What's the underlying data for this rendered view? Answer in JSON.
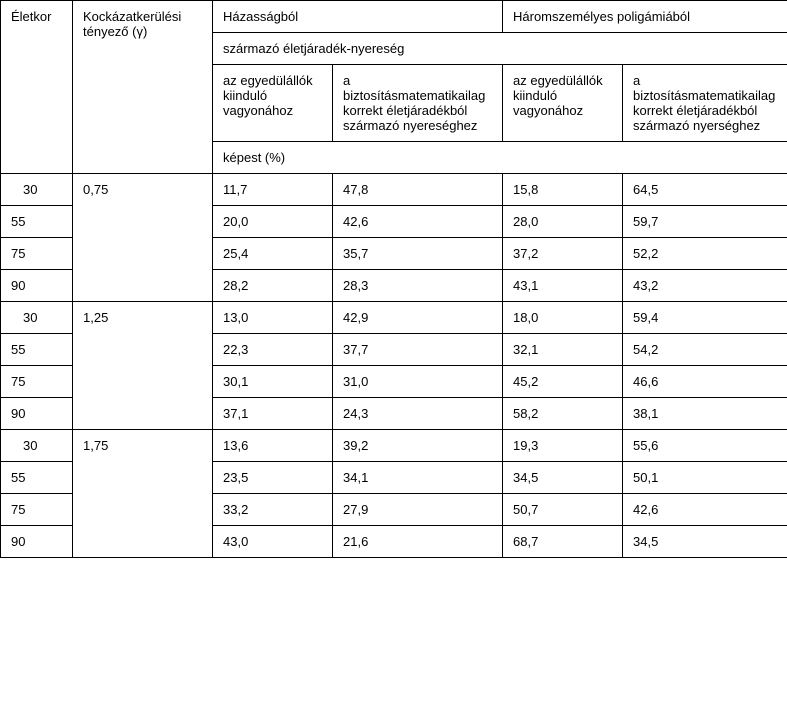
{
  "headers": {
    "col_age": "Életkor",
    "col_risk": "Kockázatkerülési tényező (γ)",
    "marriage": "Házasságból",
    "polygamy": "Háromszemélyes poligámiából",
    "annuity_gain": "származó életjáradék-nyereség",
    "sub_a": "az egyedülállók kiinduló vagyonához",
    "sub_b": "a biztosításmatematikailag korrekt életjáradékból származó nyereséghez",
    "sub_c": "az egyedülállók kiinduló vagyonához",
    "sub_d": "a biztosításmatematikailag korrekt életjáradékból származó nyerséghez",
    "compared": "képest (%)"
  },
  "groups": [
    {
      "risk": "0,75",
      "rows": [
        {
          "age": "30",
          "indent": true,
          "v1": "11,7",
          "v2": "47,8",
          "v3": "15,8",
          "v4": "64,5"
        },
        {
          "age": "55",
          "indent": false,
          "v1": "20,0",
          "v2": "42,6",
          "v3": "28,0",
          "v4": "59,7"
        },
        {
          "age": "75",
          "indent": false,
          "v1": "25,4",
          "v2": "35,7",
          "v3": "37,2",
          "v4": "52,2"
        },
        {
          "age": "90",
          "indent": false,
          "v1": "28,2",
          "v2": "28,3",
          "v3": "43,1",
          "v4": "43,2"
        }
      ]
    },
    {
      "risk": "1,25",
      "rows": [
        {
          "age": "30",
          "indent": true,
          "v1": "13,0",
          "v2": "42,9",
          "v3": "18,0",
          "v4": "59,4"
        },
        {
          "age": "55",
          "indent": false,
          "v1": "22,3",
          "v2": "37,7",
          "v3": "32,1",
          "v4": "54,2"
        },
        {
          "age": "75",
          "indent": false,
          "v1": "30,1",
          "v2": "31,0",
          "v3": "45,2",
          "v4": "46,6"
        },
        {
          "age": "90",
          "indent": false,
          "v1": "37,1",
          "v2": "24,3",
          "v3": "58,2",
          "v4": "38,1"
        }
      ]
    },
    {
      "risk": "1,75",
      "rows": [
        {
          "age": "30",
          "indent": true,
          "v1": "13,6",
          "v2": "39,2",
          "v3": "19,3",
          "v4": "55,6"
        },
        {
          "age": "55",
          "indent": false,
          "v1": "23,5",
          "v2": "34,1",
          "v3": "34,5",
          "v4": "50,1"
        },
        {
          "age": "75",
          "indent": false,
          "v1": "33,2",
          "v2": "27,9",
          "v3": "50,7",
          "v4": "42,6"
        },
        {
          "age": "90",
          "indent": false,
          "v1": "43,0",
          "v2": "21,6",
          "v3": "68,7",
          "v4": "34,5"
        }
      ]
    }
  ]
}
